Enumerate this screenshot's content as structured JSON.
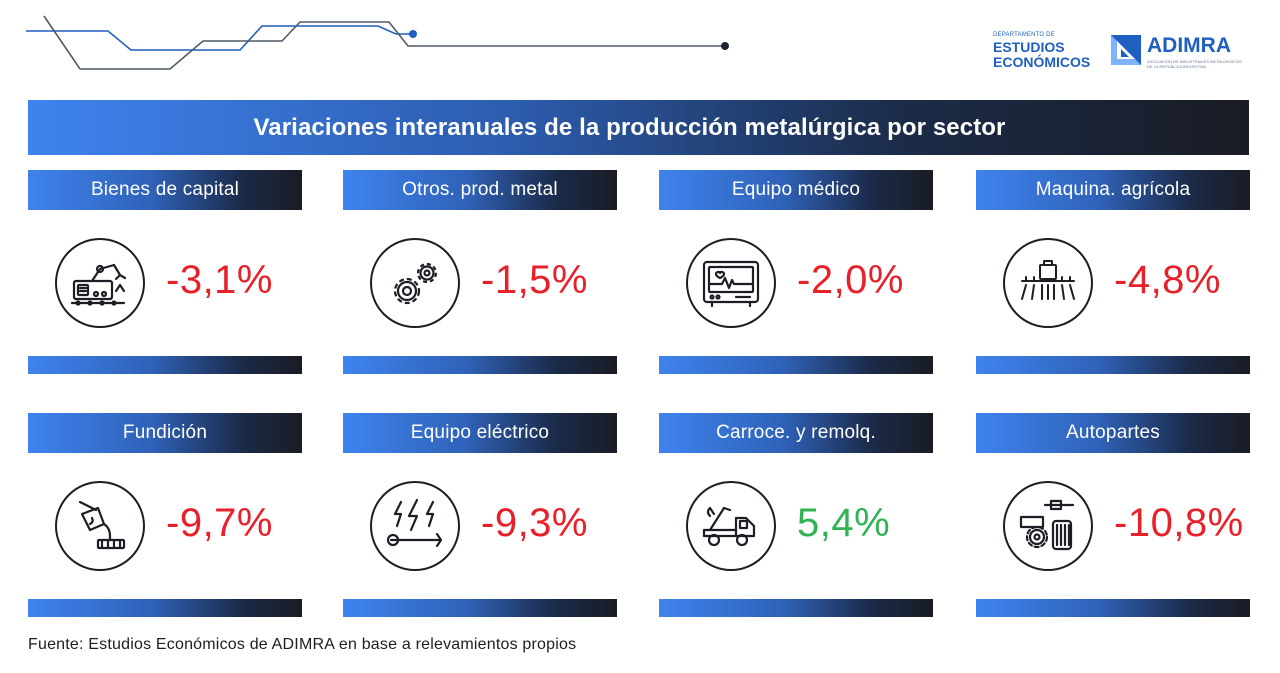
{
  "header": {
    "dept_small": "DEPARTAMENTO DE",
    "dept_line1": "ESTUDIOS",
    "dept_line2": "ECONÓMICOS",
    "brand": "ADIMRA",
    "brand_sub": "ASOCIACIÓN DE INDUSTRIALES METALÚRGICOS DE LA REPÚBLICA ARGENTINA",
    "brand_color": "#1f5fbf"
  },
  "title": "Variaciones interanuales de la producción metalúrgica por sector",
  "colors": {
    "negative": "#e8202a",
    "positive": "#2fb355"
  },
  "sectors": [
    {
      "label": "Bienes de capital",
      "value": "-3,1%",
      "trend": "negative",
      "icon": "robotic-arm-icon"
    },
    {
      "label": "Otros. prod. metal",
      "value": "-1,5%",
      "trend": "negative",
      "icon": "gears-icon"
    },
    {
      "label": "Equipo médico",
      "value": "-2,0%",
      "trend": "negative",
      "icon": "heart-monitor-icon"
    },
    {
      "label": "Maquina. agrícola",
      "value": "-4,8%",
      "trend": "negative",
      "icon": "sprayer-icon"
    },
    {
      "label": "Fundición",
      "value": "-9,7%",
      "trend": "negative",
      "icon": "foundry-ladle-icon"
    },
    {
      "label": "Equipo eléctrico",
      "value": "-9,3%",
      "trend": "negative",
      "icon": "electric-tools-icon"
    },
    {
      "label": "Carroce. y remolq.",
      "value": "5,4%",
      "trend": "positive",
      "icon": "tow-truck-icon"
    },
    {
      "label": "Autopartes",
      "value": "-10,8%",
      "trend": "negative",
      "icon": "auto-parts-icon"
    }
  ],
  "source": "Fuente: Estudios Económicos de ADIMRA en base a relevamientos propios"
}
